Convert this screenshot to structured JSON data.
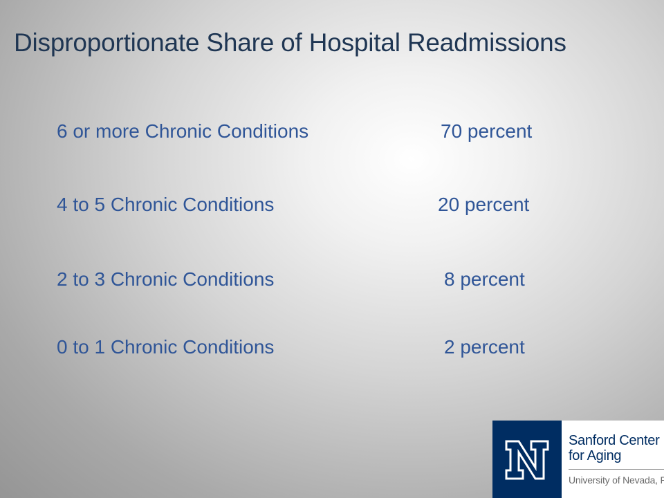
{
  "slide": {
    "title": "Disproportionate Share of Hospital Readmissions",
    "rows": [
      {
        "label": "6 or more Chronic Conditions",
        "value": "70 percent"
      },
      {
        "label": "4 to 5 Chronic Conditions",
        "value": "20 percent"
      },
      {
        "label": "2 to 3 Chronic Conditions",
        "value": "8 percent"
      },
      {
        "label": "0 to 1 Chronic Conditions",
        "value": "2 percent"
      }
    ]
  },
  "logo": {
    "icon": "university-n-icon",
    "name_line1": "Sanford Center",
    "name_line2": "for Aging",
    "university": "University of Nevada, Reno",
    "brand_color": "#002d62"
  },
  "colors": {
    "title": "#1f3653",
    "body_text": "#2f5597"
  }
}
